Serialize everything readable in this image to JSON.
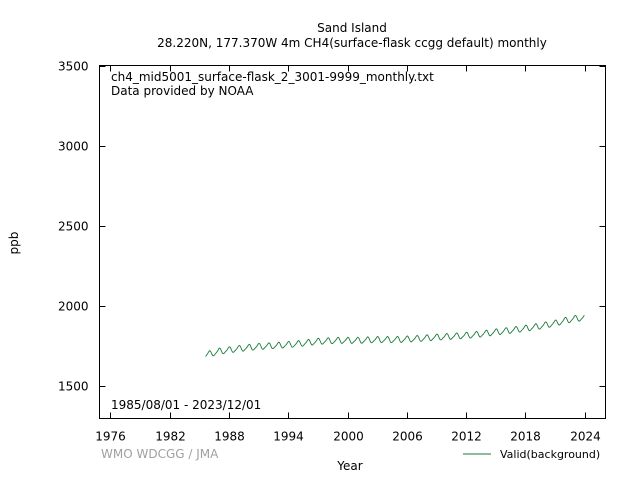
{
  "header": {
    "title_line1": "Sand Island",
    "title_line2": "28.220N, 177.370W 4m    CH4(surface-flask ccgg default) monthly"
  },
  "annotations": {
    "filename": "ch4_mid5001_surface-flask_2_3001-9999_monthly.txt",
    "provider": "Data provided by NOAA",
    "date_range": "1985/08/01 - 2023/12/01",
    "watermark": "WMO WDCGG / JMA"
  },
  "colors": {
    "series": "#1a7a3a",
    "axis": "#000000",
    "watermark": "#a0a0a0"
  },
  "chart_data": {
    "type": "line",
    "xlabel": "Year",
    "ylabel": "ppb",
    "xlim": [
      1974.9,
      2026.1
    ],
    "ylim": [
      1300,
      3500
    ],
    "x_ticks": [
      1976,
      1982,
      1988,
      1994,
      2000,
      2006,
      2012,
      2018,
      2024
    ],
    "y_ticks": [
      1500,
      2000,
      2500,
      3000,
      3500
    ],
    "grid": false,
    "legend_position": "bottom-right, below plot",
    "series": [
      {
        "name": "Valid(background)",
        "start": "1985-08",
        "end": "2023-12",
        "trend_points": [
          [
            1985.6,
            1695
          ],
          [
            1987,
            1718
          ],
          [
            1989,
            1735
          ],
          [
            1991,
            1748
          ],
          [
            1993,
            1755
          ],
          [
            1995,
            1765
          ],
          [
            1997,
            1780
          ],
          [
            1999,
            1786
          ],
          [
            2001,
            1786
          ],
          [
            2003,
            1791
          ],
          [
            2005,
            1791
          ],
          [
            2007,
            1797
          ],
          [
            2009,
            1806
          ],
          [
            2011,
            1813
          ],
          [
            2013,
            1822
          ],
          [
            2015,
            1838
          ],
          [
            2017,
            1853
          ],
          [
            2019,
            1870
          ],
          [
            2021,
            1893
          ],
          [
            2022,
            1910
          ],
          [
            2023,
            1922
          ],
          [
            2024.0,
            1928
          ]
        ],
        "seasonal_amplitude": 22
      }
    ]
  }
}
